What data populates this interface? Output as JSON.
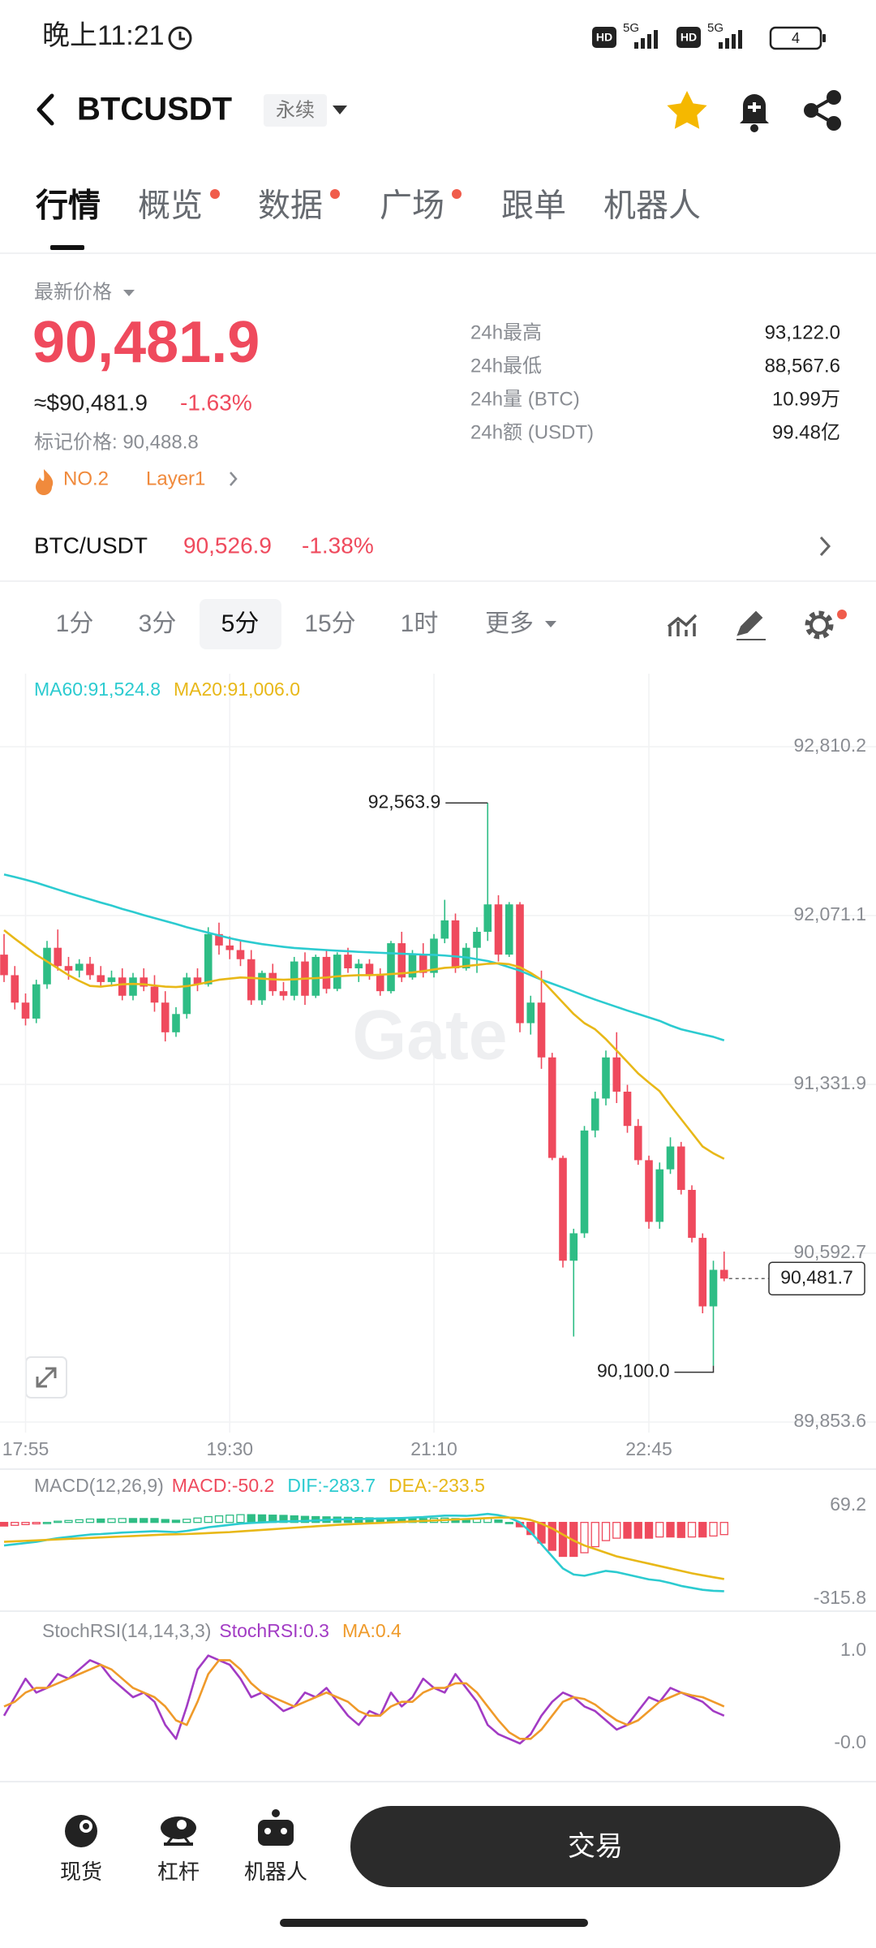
{
  "status_bar": {
    "time": "晚上11:21",
    "hd": "HD",
    "network": "5G",
    "battery": "4"
  },
  "header": {
    "symbol": "BTCUSDT",
    "badge": "永续"
  },
  "tabs": [
    "行情",
    "概览",
    "数据",
    "广场",
    "跟单",
    "机器人"
  ],
  "ticker": {
    "label": "最新价格",
    "price": "90,481.9",
    "approx": "≈$90,481.9",
    "change": "-1.63%",
    "mark_price": "标记价格: 90,488.8",
    "rank": "NO.2",
    "tag": "Layer1"
  },
  "stats": [
    {
      "label": "24h最高",
      "value": "93,122.0"
    },
    {
      "label": "24h最低",
      "value": "88,567.6"
    },
    {
      "label": "24h量 (BTC)",
      "value": "10.99万"
    },
    {
      "label": "24h额 (USDT)",
      "value": "99.48亿"
    }
  ],
  "pair": {
    "name": "BTC/USDT",
    "price": "90,526.9",
    "change": "-1.38%"
  },
  "intervals": [
    "1分",
    "3分",
    "5分",
    "15分",
    "1时",
    "更多"
  ],
  "chart_data": [
    {
      "type": "candlestick",
      "watermark": "Gate",
      "grid": true,
      "up_color": "#2ebd85",
      "down_color": "#ef4a5d",
      "ylim": [
        89853.6,
        92810.2
      ],
      "yticks": [
        {
          "value": 92810.2,
          "label": "92,810.2"
        },
        {
          "value": 92071.1,
          "label": "92,071.1"
        },
        {
          "value": 91331.9,
          "label": "91,331.9"
        },
        {
          "value": 90592.7,
          "label": "90,592.7"
        },
        {
          "value": 89853.6,
          "label": "89,853.6"
        }
      ],
      "categories": [
        null,
        null,
        "17:55",
        null,
        null,
        null,
        null,
        null,
        null,
        null,
        null,
        null,
        null,
        null,
        null,
        null,
        null,
        null,
        null,
        null,
        null,
        "19:30",
        null,
        null,
        null,
        null,
        null,
        null,
        null,
        null,
        null,
        null,
        null,
        null,
        null,
        null,
        null,
        null,
        null,
        null,
        "21:10",
        null,
        null,
        null,
        null,
        null,
        null,
        null,
        null,
        null,
        null,
        null,
        null,
        null,
        null,
        null,
        null,
        null,
        null,
        null,
        "22:45",
        null,
        null,
        null,
        null,
        null,
        null,
        null
      ],
      "open": [
        91900,
        91810,
        91690,
        91620,
        91770,
        91930,
        91850,
        91830,
        91860,
        91810,
        91780,
        91800,
        91720,
        91800,
        91760,
        91690,
        91560,
        91640,
        91800,
        91770,
        91990,
        91940,
        91920,
        91880,
        91700,
        91820,
        91740,
        91720,
        91870,
        91720,
        91890,
        91750,
        91900,
        91840,
        91860,
        91810,
        91740,
        91950,
        91800,
        91900,
        91820,
        91970,
        92050,
        91840,
        91930,
        92000,
        92120,
        91900,
        92120,
        91600,
        91690,
        91450,
        91010,
        90560,
        90680,
        91130,
        91270,
        91450,
        91300,
        91150,
        91000,
        90730,
        90960,
        91060,
        90870,
        90660,
        90360,
        90520
      ],
      "high": [
        91990,
        91850,
        91730,
        91790,
        91960,
        92010,
        91890,
        91880,
        91890,
        91850,
        91830,
        91840,
        91820,
        91840,
        91810,
        91740,
        91670,
        91820,
        91840,
        92020,
        92040,
        91980,
        91960,
        91920,
        91830,
        91860,
        91780,
        91890,
        91910,
        91900,
        91920,
        91910,
        91930,
        91880,
        91880,
        91840,
        91960,
        92000,
        91920,
        91950,
        91990,
        92140,
        92080,
        91950,
        92020,
        92563.9,
        92160,
        92130,
        92130,
        91720,
        91830,
        91470,
        91020,
        90700,
        91150,
        91300,
        91480,
        91560,
        91330,
        91180,
        91020,
        90990,
        91100,
        91080,
        90890,
        90680,
        90560,
        90600
      ],
      "low": [
        91780,
        91660,
        91590,
        91600,
        91750,
        91830,
        91790,
        91800,
        91790,
        91760,
        91760,
        91700,
        91700,
        91740,
        91650,
        91520,
        91540,
        91620,
        91740,
        91760,
        91900,
        91880,
        91850,
        91680,
        91680,
        91720,
        91700,
        91700,
        91680,
        91710,
        91730,
        91740,
        91820,
        91780,
        91790,
        91720,
        91730,
        91780,
        91790,
        91800,
        91800,
        91950,
        91820,
        91830,
        91820,
        91960,
        91870,
        91890,
        91560,
        91550,
        91400,
        91000,
        90530,
        90228,
        90660,
        91100,
        91240,
        91250,
        91120,
        90980,
        90700,
        90700,
        90940,
        90850,
        90640,
        90330,
        90100,
        90470
      ],
      "close": [
        91810,
        91690,
        91620,
        91770,
        91930,
        91850,
        91830,
        91860,
        91810,
        91780,
        91800,
        91720,
        91800,
        91760,
        91690,
        91560,
        91640,
        91800,
        91770,
        91990,
        91940,
        91920,
        91880,
        91700,
        91820,
        91740,
        91720,
        91870,
        91720,
        91890,
        91750,
        91900,
        91840,
        91860,
        91810,
        91740,
        91950,
        91800,
        91900,
        91820,
        91970,
        92050,
        91840,
        91930,
        92000,
        92120,
        91900,
        92120,
        91600,
        91690,
        91450,
        91010,
        90560,
        90680,
        91130,
        91270,
        91450,
        91300,
        91150,
        91000,
        90730,
        90960,
        91060,
        90870,
        90660,
        90360,
        90520,
        90481.7
      ],
      "series": [
        {
          "name": "MA60:91,524.8",
          "color": "#2ccbd0",
          "values": [
            92251,
            92240,
            92228,
            92215,
            92200,
            92185,
            92170,
            92156,
            92142,
            92128,
            92115,
            92100,
            92087,
            92073,
            92060,
            92047,
            92034,
            92020,
            92008,
            91996,
            91984,
            91972,
            91962,
            91954,
            91946,
            91940,
            91934,
            91929,
            91926,
            91923,
            91920,
            91917,
            91915,
            91912,
            91910,
            91908,
            91906,
            91904,
            91902,
            91900,
            91899,
            91896,
            91892,
            91888,
            91880,
            91872,
            91860,
            91845,
            91830,
            91810,
            91790,
            91773,
            91756,
            91738,
            91720,
            91703,
            91687,
            91671,
            91655,
            91640,
            91625,
            91610,
            91590,
            91573,
            91562,
            91551,
            91540,
            91524.8
          ]
        },
        {
          "name": "MA20:91,006.0",
          "color": "#e8b818",
          "values": [
            92007,
            91970,
            91935,
            91899,
            91870,
            91840,
            91810,
            91785,
            91763,
            91760,
            91765,
            91770,
            91772,
            91770,
            91765,
            91760,
            91758,
            91762,
            91770,
            91780,
            91790,
            91795,
            91800,
            91798,
            91795,
            91792,
            91790,
            91792,
            91795,
            91797,
            91800,
            91805,
            91808,
            91810,
            91810,
            91812,
            91815,
            91818,
            91822,
            91828,
            91835,
            91842,
            91845,
            91850,
            91855,
            91860,
            91862,
            91858,
            91845,
            91820,
            91790,
            91740,
            91690,
            91640,
            91600,
            91573,
            91530,
            91480,
            91430,
            91380,
            91340,
            91302,
            91240,
            91180,
            91120,
            91060,
            91030,
            91006.0
          ]
        }
      ],
      "annotations": [
        {
          "value": 92563.9,
          "label": "92,563.9"
        },
        {
          "value": 90100,
          "label": "90,100.0"
        }
      ],
      "last_price": {
        "value": 90481.7,
        "label": "90,481.7"
      }
    },
    {
      "type": "bar",
      "title": "MACD(12,26,9)",
      "grid": false,
      "ylim": [
        -315.8,
        69.2
      ],
      "yticks": [
        69.2,
        -315.8
      ],
      "series": [
        {
          "name": "MACD:-50.2",
          "kind": "bar",
          "color": "#ef4a5d",
          "up_color": "#2ebd85",
          "values": [
            -15,
            -12,
            -9,
            -6,
            0,
            5,
            8,
            11,
            14,
            14,
            15,
            16,
            16,
            16,
            16,
            12,
            9,
            13,
            18,
            24,
            27,
            30,
            32,
            32,
            31,
            30,
            29,
            27,
            25,
            24,
            23,
            22,
            21,
            20,
            19,
            18,
            17,
            16,
            16,
            16,
            17,
            18,
            16,
            13,
            14,
            17,
            10,
            0,
            -18,
            -50,
            -85,
            -115,
            -140,
            -140,
            -125,
            -100,
            -75,
            -65,
            -65,
            -65,
            -65,
            -60,
            -60,
            -62,
            -60,
            -60,
            -56,
            -50.2
          ]
        },
        {
          "name": "DIF:-283.7",
          "kind": "line",
          "color": "#2ccbd0",
          "values": [
            -95,
            -90,
            -85,
            -80,
            -72,
            -65,
            -60,
            -55,
            -50,
            -48,
            -45,
            -42,
            -40,
            -38,
            -36,
            -38,
            -40,
            -35,
            -28,
            -20,
            -15,
            -10,
            -5,
            -2,
            0,
            2,
            4,
            5,
            6,
            8,
            10,
            12,
            13,
            14,
            15,
            16,
            17,
            18,
            20,
            22,
            25,
            28,
            28,
            27,
            30,
            35,
            30,
            20,
            0,
            -40,
            -90,
            -140,
            -190,
            -215,
            -220,
            -210,
            -200,
            -205,
            -215,
            -225,
            -235,
            -240,
            -250,
            -262,
            -270,
            -278,
            -282,
            -283.7
          ]
        },
        {
          "name": "DEA:-233.5",
          "kind": "line",
          "color": "#e8b818",
          "values": [
            -80,
            -78,
            -76,
            -74,
            -72,
            -70,
            -68,
            -66,
            -64,
            -62,
            -60,
            -58,
            -56,
            -54,
            -52,
            -50,
            -49,
            -48,
            -46,
            -44,
            -42,
            -40,
            -37,
            -34,
            -31,
            -28,
            -25,
            -22,
            -19,
            -16,
            -13,
            -10,
            -8,
            -6,
            -4,
            -2,
            0,
            2,
            4,
            6,
            8,
            10,
            12,
            14,
            16,
            18,
            20,
            20,
            18,
            10,
            -5,
            -25,
            -50,
            -75,
            -95,
            -110,
            -125,
            -140,
            -150,
            -160,
            -170,
            -180,
            -190,
            -200,
            -210,
            -218,
            -226,
            -233.5
          ]
        }
      ]
    },
    {
      "type": "line",
      "title": "StochRSI(14,14,3,3)",
      "grid": false,
      "ylim": [
        0,
        1
      ],
      "yticks": [
        {
          "value": 1,
          "label": "1.0"
        },
        {
          "value": 0,
          "label": "-0.0"
        }
      ],
      "series": [
        {
          "name": "StochRSI:0.3",
          "color": "#a23bc4",
          "values": [
            0.3,
            0.5,
            0.7,
            0.55,
            0.6,
            0.75,
            0.7,
            0.8,
            0.9,
            0.85,
            0.7,
            0.6,
            0.5,
            0.55,
            0.45,
            0.2,
            0.05,
            0.4,
            0.8,
            0.95,
            0.9,
            0.85,
            0.7,
            0.5,
            0.55,
            0.45,
            0.35,
            0.4,
            0.55,
            0.5,
            0.6,
            0.45,
            0.3,
            0.2,
            0.35,
            0.3,
            0.55,
            0.4,
            0.5,
            0.7,
            0.6,
            0.55,
            0.75,
            0.6,
            0.45,
            0.2,
            0.1,
            0.05,
            0.0,
            0.1,
            0.3,
            0.45,
            0.55,
            0.5,
            0.4,
            0.35,
            0.25,
            0.15,
            0.2,
            0.35,
            0.5,
            0.45,
            0.6,
            0.55,
            0.5,
            0.45,
            0.35,
            0.3
          ]
        },
        {
          "name": "MA:0.4",
          "color": "#ef9a2a",
          "values": [
            0.4,
            0.45,
            0.55,
            0.6,
            0.6,
            0.65,
            0.7,
            0.75,
            0.8,
            0.85,
            0.8,
            0.7,
            0.6,
            0.55,
            0.5,
            0.4,
            0.25,
            0.2,
            0.45,
            0.75,
            0.9,
            0.9,
            0.8,
            0.65,
            0.55,
            0.5,
            0.45,
            0.4,
            0.45,
            0.5,
            0.55,
            0.5,
            0.45,
            0.35,
            0.3,
            0.3,
            0.4,
            0.45,
            0.45,
            0.55,
            0.6,
            0.6,
            0.65,
            0.65,
            0.55,
            0.4,
            0.25,
            0.12,
            0.05,
            0.05,
            0.15,
            0.3,
            0.45,
            0.5,
            0.48,
            0.42,
            0.33,
            0.25,
            0.2,
            0.25,
            0.35,
            0.45,
            0.5,
            0.55,
            0.52,
            0.5,
            0.45,
            0.4
          ]
        }
      ]
    }
  ],
  "bottom_nav": {
    "items": [
      "现货",
      "杠杆",
      "机器人"
    ],
    "trade": "交易"
  }
}
